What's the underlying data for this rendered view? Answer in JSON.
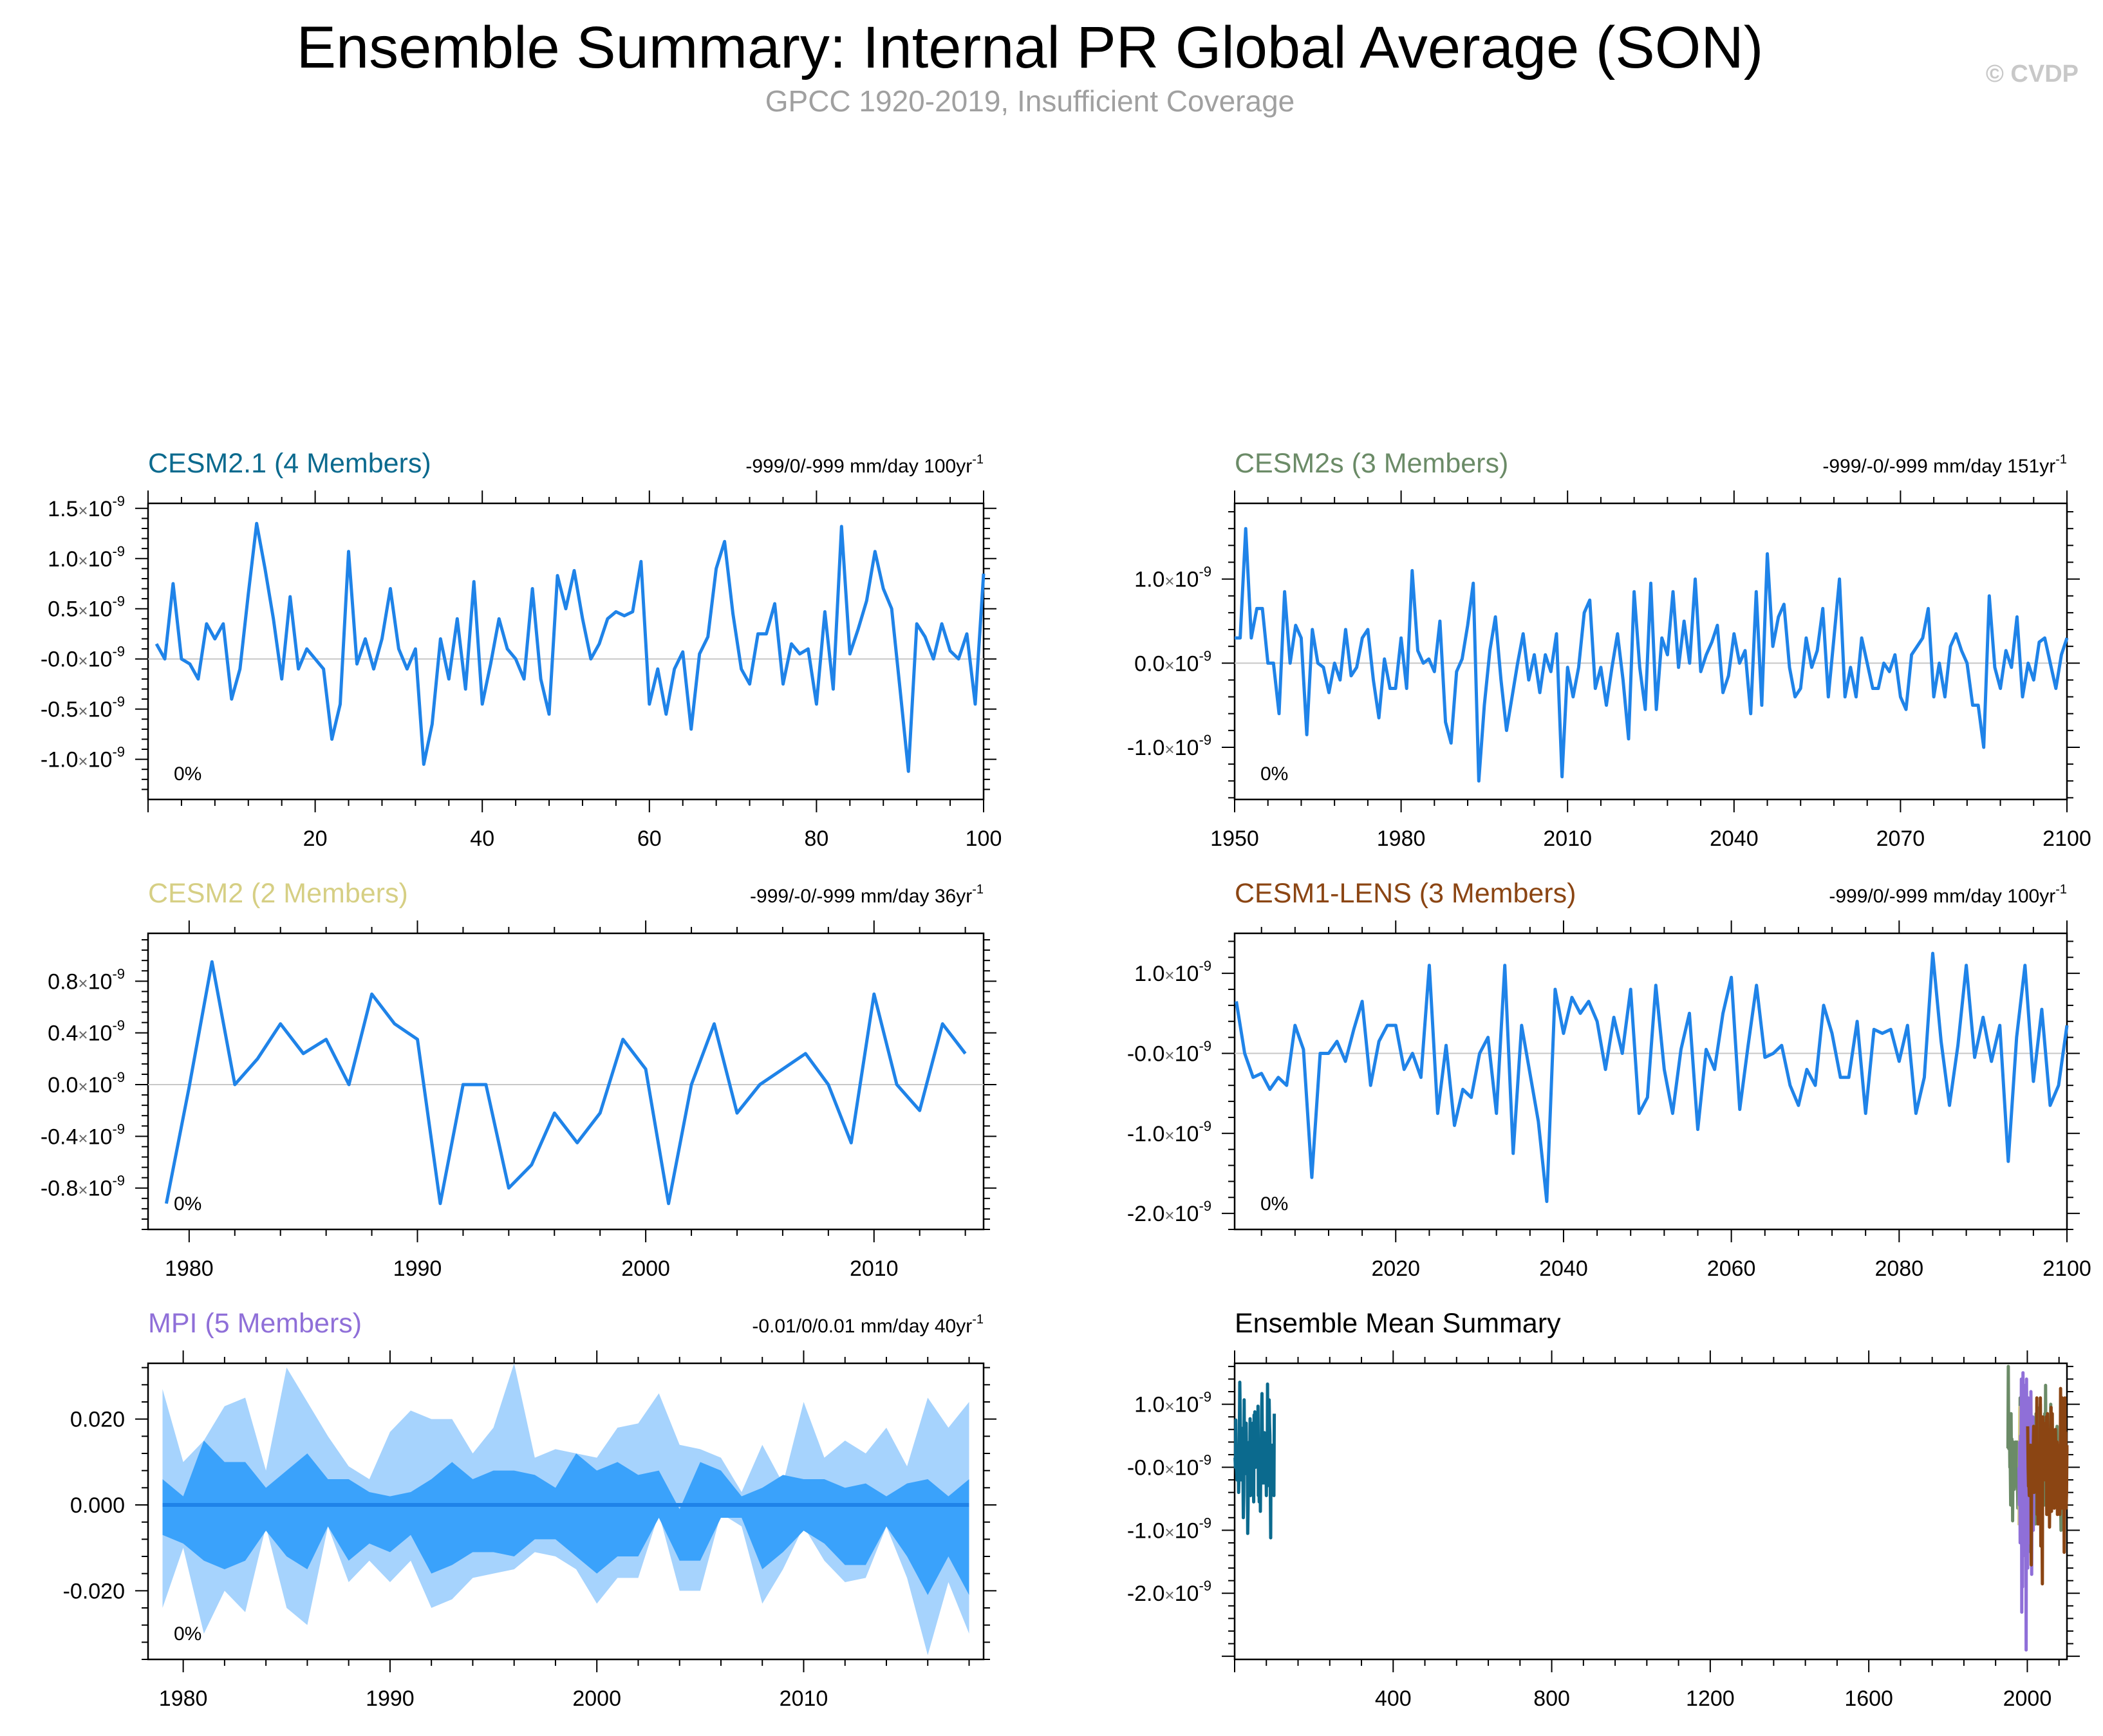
{
  "page": {
    "title": "Ensemble Summary: Internal PR Global Average (SON)",
    "subtitle": "GPCC 1920-2019, Insufficient Coverage",
    "copyright": "© CVDP"
  },
  "chart_data": [
    {
      "type": "line",
      "title": "CESM2.1 (4 Members)",
      "title_color": "#0b6a8e",
      "stats_text": "-999/0/-999 mm/day 100yr",
      "stats_sup": "-1",
      "corner_label": "0%",
      "line_color": "#1f83e8",
      "xlim": [
        0,
        100
      ],
      "ylim": [
        -1.4,
        1.55
      ],
      "x_ticks": [
        20,
        40,
        60,
        80,
        100
      ],
      "x_tick_labels": [
        "20",
        "40",
        "60",
        "80",
        "100"
      ],
      "y_ticks": [
        1.5,
        1.0,
        0.5,
        0.0,
        -0.5,
        -1.0
      ],
      "y_tick_labels": [
        "1.5",
        "1.0",
        "0.5",
        "-0.0",
        "-0.5",
        "-1.0"
      ],
      "y_tick_suffix": "×10",
      "y_tick_exponent": "-9",
      "zero_line": true,
      "x_start": 1,
      "x_step": 1,
      "series": [
        {
          "values": [
            0.15,
            0.0,
            0.75,
            0.0,
            -0.05,
            -0.2,
            0.35,
            0.2,
            0.35,
            -0.4,
            -0.1,
            0.65,
            1.35,
            0.9,
            0.4,
            -0.2,
            0.62,
            -0.1,
            0.1,
            0.0,
            -0.1,
            -0.8,
            -0.45,
            1.07,
            -0.05,
            0.2,
            -0.1,
            0.2,
            0.7,
            0.1,
            -0.1,
            0.1,
            -1.05,
            -0.65,
            0.2,
            -0.2,
            0.4,
            -0.3,
            0.77,
            -0.45,
            -0.05,
            0.4,
            0.1,
            0.0,
            -0.2,
            0.7,
            -0.2,
            -0.55,
            0.83,
            0.5,
            0.88,
            0.4,
            0.0,
            0.15,
            0.4,
            0.47,
            0.43,
            0.47,
            0.97,
            -0.45,
            -0.1,
            -0.55,
            -0.1,
            0.07,
            -0.7,
            0.05,
            0.22,
            0.9,
            1.17,
            0.45,
            -0.1,
            -0.25,
            0.25,
            0.25,
            0.55,
            -0.25,
            0.15,
            0.05,
            0.1,
            -0.45,
            0.47,
            -0.3,
            1.32,
            0.05,
            0.3,
            0.58,
            1.07,
            0.7,
            0.5,
            -0.3,
            -1.12,
            0.35,
            0.22,
            0.0,
            0.35,
            0.08,
            0.0,
            0.25,
            -0.45,
            0.85
          ]
        }
      ]
    },
    {
      "type": "line",
      "title": "CESM2s (3 Members)",
      "title_color": "#6b8b67",
      "stats_text": "-999/-0/-999 mm/day 151yr",
      "stats_sup": "-1",
      "corner_label": "0%",
      "line_color": "#1f83e8",
      "xlim": [
        1950,
        2100
      ],
      "ylim": [
        -1.62,
        1.9
      ],
      "x_ticks": [
        1950,
        1980,
        2010,
        2040,
        2070,
        2100
      ],
      "x_tick_labels": [
        "1950",
        "1980",
        "2010",
        "2040",
        "2070",
        "2100"
      ],
      "y_ticks": [
        1.0,
        0.0,
        -1.0
      ],
      "y_tick_labels": [
        "1.0",
        "0.0",
        "-1.0"
      ],
      "y_tick_suffix": "×10",
      "y_tick_exponent": "-9",
      "zero_line": true,
      "x_start": 1950,
      "x_step": 1,
      "series": [
        {
          "values": [
            0.3,
            0.3,
            1.6,
            0.3,
            0.65,
            0.65,
            0.0,
            0.0,
            -0.6,
            0.85,
            0.0,
            0.45,
            0.3,
            -0.85,
            0.4,
            0.0,
            -0.05,
            -0.35,
            0.0,
            -0.2,
            0.4,
            -0.15,
            -0.05,
            0.3,
            0.4,
            -0.2,
            -0.65,
            0.05,
            -0.3,
            -0.3,
            0.3,
            -0.3,
            1.1,
            0.15,
            0.0,
            0.05,
            -0.1,
            0.5,
            -0.7,
            -0.95,
            -0.1,
            0.05,
            0.45,
            0.95,
            -1.4,
            -0.5,
            0.15,
            0.55,
            -0.2,
            -0.8,
            -0.4,
            0.0,
            0.35,
            -0.2,
            0.1,
            -0.35,
            0.1,
            -0.1,
            0.35,
            -1.35,
            -0.05,
            -0.4,
            -0.05,
            0.6,
            0.75,
            -0.3,
            -0.05,
            -0.5,
            -0.05,
            0.35,
            -0.2,
            -0.9,
            0.85,
            -0.05,
            -0.55,
            0.95,
            -0.55,
            0.3,
            0.1,
            0.85,
            -0.05,
            0.5,
            0.0,
            1.0,
            -0.1,
            0.1,
            0.25,
            0.45,
            -0.35,
            -0.15,
            0.35,
            0.0,
            0.15,
            -0.6,
            0.85,
            -0.5,
            1.3,
            0.2,
            0.55,
            0.7,
            -0.05,
            -0.4,
            -0.3,
            0.3,
            -0.05,
            0.15,
            0.65,
            -0.4,
            0.3,
            1.0,
            -0.4,
            -0.05,
            -0.4,
            0.3,
            0.0,
            -0.3,
            -0.3,
            0.0,
            -0.1,
            0.1,
            -0.4,
            -0.55,
            0.1,
            0.2,
            0.3,
            0.65,
            -0.4,
            0.0,
            -0.4,
            0.2,
            0.35,
            0.15,
            0.0,
            -0.5,
            -0.5,
            -1.0,
            0.8,
            -0.05,
            -0.3,
            0.15,
            -0.05,
            0.55,
            -0.4,
            0.0,
            -0.2,
            0.25,
            0.3,
            0.0,
            -0.3,
            0.1,
            0.3
          ]
        }
      ]
    },
    {
      "type": "line",
      "title": "CESM2 (2 Members)",
      "title_color": "#d6cf84",
      "stats_text": "-999/-0/-999 mm/day 36yr",
      "stats_sup": "-1",
      "corner_label": "0%",
      "line_color": "#1f83e8",
      "xlim": [
        1978.2,
        2014.8
      ],
      "ylim": [
        -1.12,
        1.17
      ],
      "x_ticks": [
        1980,
        1990,
        2000,
        2010
      ],
      "x_tick_labels": [
        "1980",
        "1990",
        "2000",
        "2010"
      ],
      "y_ticks": [
        0.8,
        0.4,
        0.0,
        -0.4,
        -0.8
      ],
      "y_tick_labels": [
        "0.8",
        "0.4",
        "0.0",
        "-0.4",
        "-0.8"
      ],
      "y_tick_suffix": "×10",
      "y_tick_exponent": "-9",
      "zero_line": true,
      "x_start": 1979,
      "x_step": 1,
      "series": [
        {
          "values": [
            -0.92,
            -0.02,
            0.95,
            0.0,
            0.2,
            0.47,
            0.24,
            0.35,
            0.0,
            0.7,
            0.47,
            0.35,
            -0.92,
            0.0,
            0.0,
            -0.8,
            -0.62,
            -0.22,
            -0.45,
            -0.22,
            0.35,
            0.12,
            -0.92,
            0.0,
            0.47,
            -0.22,
            0.0,
            0.12,
            0.24,
            0.0,
            -0.45,
            0.7,
            0.0,
            -0.2,
            0.47,
            0.24
          ]
        }
      ]
    },
    {
      "type": "line",
      "title": "CESM1-LENS (3 Members)",
      "title_color": "#8b4513",
      "stats_text": "-999/0/-999 mm/day 100yr",
      "stats_sup": "-1",
      "corner_label": "0%",
      "line_color": "#1f83e8",
      "xlim": [
        2000.8,
        2100
      ],
      "ylim": [
        -2.2,
        1.5
      ],
      "x_ticks": [
        2020,
        2040,
        2060,
        2080,
        2100
      ],
      "x_tick_labels": [
        "2020",
        "2040",
        "2060",
        "2080",
        "2100"
      ],
      "y_ticks": [
        1.0,
        0.0,
        -1.0,
        -2.0
      ],
      "y_tick_labels": [
        "1.0",
        "-0.0",
        "-1.0",
        "-2.0"
      ],
      "y_tick_suffix": "×10",
      "y_tick_exponent": "-9",
      "zero_line": true,
      "x_start": 2001,
      "x_step": 1,
      "series": [
        {
          "values": [
            0.65,
            0.0,
            -0.3,
            -0.25,
            -0.45,
            -0.3,
            -0.4,
            0.35,
            0.05,
            -1.55,
            0.0,
            0.0,
            0.15,
            -0.1,
            0.3,
            0.65,
            -0.4,
            0.15,
            0.35,
            0.35,
            -0.2,
            0.0,
            -0.3,
            1.1,
            -0.75,
            0.1,
            -0.9,
            -0.45,
            -0.55,
            0.0,
            0.2,
            -0.75,
            1.1,
            -1.25,
            0.35,
            -0.25,
            -0.85,
            -1.85,
            0.8,
            0.25,
            0.7,
            0.5,
            0.65,
            0.4,
            -0.2,
            0.45,
            0.0,
            0.8,
            -0.75,
            -0.55,
            0.85,
            -0.2,
            -0.75,
            0.05,
            0.5,
            -0.95,
            0.05,
            -0.2,
            0.5,
            0.95,
            -0.7,
            0.1,
            0.85,
            -0.05,
            0.0,
            0.1,
            -0.4,
            -0.65,
            -0.2,
            -0.4,
            0.6,
            0.25,
            -0.3,
            -0.3,
            0.4,
            -0.75,
            0.3,
            0.25,
            0.3,
            -0.1,
            0.35,
            -0.75,
            -0.3,
            1.25,
            0.15,
            -0.65,
            0.1,
            1.1,
            -0.05,
            0.45,
            -0.1,
            0.35,
            -1.35,
            0.2,
            1.1,
            -0.35,
            0.55,
            -0.65,
            -0.4,
            0.35
          ]
        }
      ]
    },
    {
      "type": "area",
      "title": "MPI (5 Members)",
      "title_color": "#8f6fd8",
      "stats_text": "-0.01/0/0.01 mm/day 40yr",
      "stats_sup": "-1",
      "corner_label": "0%",
      "xlim": [
        1978.3,
        2018.7
      ],
      "ylim": [
        -0.036,
        0.033
      ],
      "x_ticks": [
        1980,
        1990,
        2000,
        2010
      ],
      "x_tick_labels": [
        "1980",
        "1990",
        "2000",
        "2010"
      ],
      "y_ticks": [
        0.02,
        0.0,
        -0.02
      ],
      "y_tick_labels": [
        "0.020",
        "0.000",
        "-0.020"
      ],
      "zero_line": false,
      "x_start": 1979,
      "x_step": 1,
      "outer_band": {
        "color": "#a6d3fd",
        "upper": [
          0.027,
          0.01,
          0.015,
          0.023,
          0.025,
          0.008,
          0.032,
          0.024,
          0.016,
          0.009,
          0.006,
          0.017,
          0.022,
          0.02,
          0.02,
          0.012,
          0.018,
          0.033,
          0.011,
          0.013,
          0.012,
          0.011,
          0.018,
          0.019,
          0.026,
          0.014,
          0.013,
          0.011,
          0.003,
          0.014,
          0.005,
          0.024,
          0.011,
          0.015,
          0.012,
          0.018,
          0.009,
          0.025,
          0.018,
          0.024
        ],
        "lower": [
          -0.024,
          -0.01,
          -0.03,
          -0.02,
          -0.025,
          -0.005,
          -0.024,
          -0.028,
          -0.005,
          -0.018,
          -0.013,
          -0.018,
          -0.013,
          -0.024,
          -0.022,
          -0.017,
          -0.016,
          -0.015,
          -0.011,
          -0.012,
          -0.015,
          -0.023,
          -0.017,
          -0.017,
          -0.002,
          -0.02,
          -0.02,
          -0.002,
          -0.005,
          -0.023,
          -0.015,
          -0.005,
          -0.013,
          -0.018,
          -0.017,
          -0.005,
          -0.017,
          -0.035,
          -0.018,
          -0.03
        ]
      },
      "inner_band": {
        "color": "#3aa2fb",
        "upper": [
          0.006,
          0.002,
          0.015,
          0.01,
          0.01,
          0.004,
          0.008,
          0.012,
          0.006,
          0.006,
          0.003,
          0.002,
          0.003,
          0.006,
          0.01,
          0.006,
          0.008,
          0.008,
          0.007,
          0.004,
          0.012,
          0.008,
          0.01,
          0.007,
          0.008,
          -0.001,
          0.01,
          0.008,
          0.002,
          0.004,
          0.007,
          0.006,
          0.006,
          0.004,
          0.005,
          0.002,
          0.005,
          0.006,
          0.002,
          0.006
        ],
        "lower": [
          -0.007,
          -0.009,
          -0.013,
          -0.015,
          -0.013,
          -0.006,
          -0.012,
          -0.015,
          -0.005,
          -0.013,
          -0.009,
          -0.011,
          -0.007,
          -0.016,
          -0.014,
          -0.011,
          -0.011,
          -0.012,
          -0.008,
          -0.008,
          -0.012,
          -0.016,
          -0.012,
          -0.012,
          -0.003,
          -0.013,
          -0.013,
          -0.003,
          -0.003,
          -0.015,
          -0.011,
          -0.006,
          -0.009,
          -0.014,
          -0.014,
          -0.005,
          -0.012,
          -0.021,
          -0.012,
          -0.021
        ]
      },
      "mean_line": {
        "color": "#1f83e8",
        "values": [
          0.0
        ]
      }
    },
    {
      "type": "line",
      "title": "Ensemble Mean Summary",
      "title_color": "#000000",
      "stats_text": "",
      "stats_sup": "",
      "corner_label": "",
      "xlim": [
        0,
        2100
      ],
      "ylim": [
        -3.05,
        1.65
      ],
      "x_ticks": [
        400,
        800,
        1200,
        1600,
        2000
      ],
      "x_tick_labels": [
        "400",
        "800",
        "1200",
        "1600",
        "2000"
      ],
      "y_ticks": [
        1.0,
        0.0,
        -1.0,
        -2.0
      ],
      "y_tick_labels": [
        "1.0",
        "-0.0",
        "-1.0",
        "-2.0"
      ],
      "y_tick_suffix": "×10",
      "y_tick_exponent": "-9",
      "zero_line": false,
      "summary_series": [
        {
          "color": "#0b6a8e",
          "from_chart": 0
        },
        {
          "color": "#6b8b67",
          "from_chart": 1
        },
        {
          "color": "#d6cf84",
          "from_chart": 2
        },
        {
          "color": "#8f6fd8",
          "x_start": 1979,
          "values": [
            0.0,
            -0.6,
            0.4,
            -1.2,
            0.5,
            -0.3,
            1.4,
            -2.3,
            0.8,
            -1.9,
            1.5,
            0.2,
            -0.8,
            0.6,
            -1.4,
            1.3,
            -0.5,
            0.9,
            -2.9,
            1.4,
            -0.7,
            0.3,
            -1.6,
            1.1,
            -0.4,
            0.7,
            -1.2,
            0.9,
            -0.2,
            -0.8,
            1.2,
            0.1,
            -1.7,
            0.6,
            -0.6,
            0.8,
            -1.0,
            0.4,
            -0.3,
            0.2
          ]
        },
        {
          "color": "#8b4513",
          "from_chart": 3
        }
      ]
    }
  ]
}
